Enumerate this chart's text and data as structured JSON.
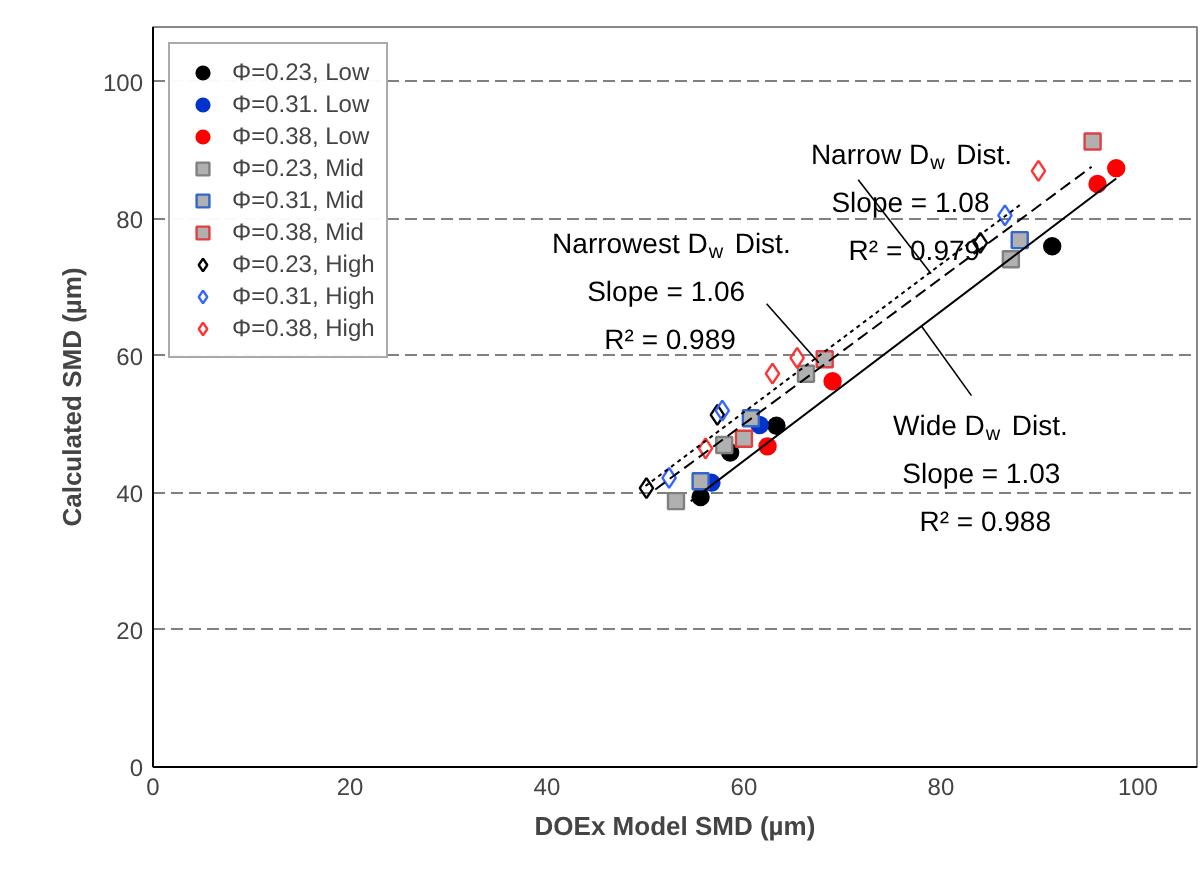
{
  "chart_data": {
    "type": "scatter",
    "xlabel": "DOEx Model SMD (µm)",
    "ylabel": "Calculated SMD (µm)",
    "xlim": [
      0,
      106
    ],
    "ylim": [
      0,
      108
    ],
    "xticks": [
      0,
      20,
      40,
      60,
      80,
      100
    ],
    "yticks": [
      0,
      20,
      40,
      60,
      80,
      100
    ],
    "grid": "y",
    "legend": "top left",
    "series": [
      {
        "name": "Φ=0.23, Low",
        "color": "#000000",
        "marker": "circle",
        "x": [
          55.6,
          58.6,
          63.3,
          91.3
        ],
        "values": [
          39.4,
          45.9,
          49.8,
          76.0
        ]
      },
      {
        "name": "Φ=0.31. Low",
        "color": "#0033cc",
        "marker": "circle",
        "x": [
          56.7,
          61.6
        ],
        "values": [
          41.5,
          49.9
        ]
      },
      {
        "name": "Φ=0.38, Low",
        "color": "#ff0000",
        "marker": "circle",
        "x": [
          62.4,
          69.0,
          95.9,
          97.8
        ],
        "values": [
          46.8,
          56.3,
          85.1,
          87.4
        ]
      },
      {
        "name": "Φ=0.23, Mid",
        "color": "#808080",
        "marker": "square",
        "x": [
          53.1,
          58.0,
          66.3,
          87.1
        ],
        "values": [
          38.8,
          47.0,
          57.4,
          74.1
        ]
      },
      {
        "name": "Φ=0.31, Mid",
        "color": "#3366cc",
        "marker": "square",
        "x": [
          55.6,
          60.7,
          88.0
        ],
        "values": [
          41.7,
          50.9,
          76.9
        ]
      },
      {
        "name": "Φ=0.38, Mid",
        "color": "#e04040",
        "marker": "square",
        "x": [
          60.0,
          68.2,
          95.4
        ],
        "values": [
          47.9,
          59.5,
          91.3
        ]
      },
      {
        "name": "Φ=0.23, High",
        "color": "#000000",
        "marker": "diamond",
        "x": [
          50.1,
          57.3,
          84.0
        ],
        "values": [
          40.7,
          51.4,
          76.5
        ]
      },
      {
        "name": "Φ=0.31, High",
        "color": "#3366ff",
        "marker": "diamond",
        "x": [
          52.4,
          57.8,
          86.5
        ],
        "values": [
          42.2,
          52.0,
          80.5
        ]
      },
      {
        "name": "Φ=0.38, High",
        "color": "#ff3333",
        "marker": "diamond",
        "x": [
          56.1,
          62.9,
          65.4,
          89.9
        ],
        "values": [
          46.5,
          57.4,
          59.7,
          87.0
        ]
      },
      {
        "type": "line",
        "color": "#000000",
        "line_style": "dotted",
        "x": [
          50,
          88
        ],
        "values": [
          41,
          82
        ]
      },
      {
        "type": "line",
        "color": "#000000",
        "line_style": "dashed",
        "x": [
          51,
          95.3
        ],
        "values": [
          40.5,
          87.6
        ]
      },
      {
        "type": "line",
        "color": "#000000",
        "line_style": "solid",
        "x": [
          54.6,
          97.8
        ],
        "values": [
          38.8,
          85.9
        ]
      }
    ],
    "annotations": [
      {
        "text": "Narrow D$_{w}$ Dist.\nSlope  = 1.08\nR² = 0.979",
        "x": 79,
        "y": 72
      },
      {
        "text": "Narrowest D$_{w}$ Dist.\nSlope  = 1.06\nR² = 0.989",
        "x": 67.6,
        "y": 59
      },
      {
        "text": "Wide D$_{w}$ Dist.\nSlope  = 1.03\nR² = 0.988",
        "x": 78,
        "y": 64.4
      }
    ]
  }
}
